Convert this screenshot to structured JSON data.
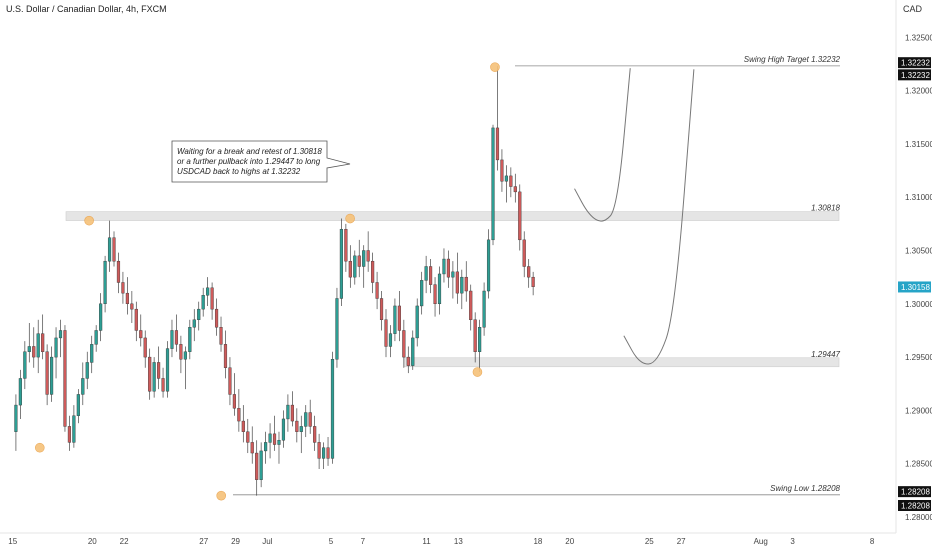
{
  "header": {
    "title": "U.S. Dollar / Canadian Dollar, 4h, FXCM",
    "currency": "CAD"
  },
  "colors": {
    "bull": "#2e9e94",
    "bear": "#ce5b5b",
    "wick": "#444444",
    "zone": "#e5e5e5",
    "marker": "#f6c27a",
    "last_price_badge": "#26a4c7",
    "level_badge": "#111111"
  },
  "chart_data": {
    "type": "candlestick",
    "title": "U.S. Dollar / Canadian Dollar, 4h, FXCM",
    "y_axis": {
      "unit": "CAD",
      "ticks": [
        "1.32500",
        "1.32000",
        "1.31500",
        "1.31000",
        "1.30500",
        "1.30000",
        "1.29500",
        "1.29000",
        "1.28500",
        "1.28000"
      ],
      "range": [
        1.2785,
        1.3285
      ],
      "badges": [
        {
          "label": "1.32232",
          "value": 1.32262,
          "style": "dark"
        },
        {
          "label": "1.32232",
          "value": 1.32148,
          "style": "dark"
        },
        {
          "label": "1.30158",
          "value": 1.30158,
          "style": "accent"
        },
        {
          "label": "1.28208",
          "value": 1.28238,
          "style": "dark"
        },
        {
          "label": "1.28208",
          "value": 1.28108,
          "style": "dark"
        }
      ]
    },
    "x_axis": {
      "ticks": [
        "15",
        "20",
        "22",
        "27",
        "29",
        "Jul",
        "5",
        "7",
        "11",
        "13",
        "18",
        "20",
        "25",
        "27",
        "Aug",
        "3",
        "8"
      ],
      "tick_positions_days": [
        0,
        5,
        7,
        12,
        14,
        16,
        20,
        22,
        26,
        28,
        33,
        35,
        40,
        42,
        47,
        49,
        54
      ],
      "range_days": [
        -0.8,
        55.5
      ]
    },
    "levels": [
      {
        "label": "Swing High Target 1.32232",
        "value": 1.32232
      },
      {
        "label": "1.30818",
        "value": 1.30818
      },
      {
        "label": "1.29447",
        "value": 1.29447
      },
      {
        "label": "Swing Low 1.28208",
        "value": 1.28208
      }
    ],
    "annotation": {
      "text_lines": [
        "Waiting for a break and retest of 1.30818",
        "or a further pullback into 1.29447 to long",
        "USDCAD back to highs at 1.32232"
      ]
    },
    "swing_points": [
      {
        "day": 1.7,
        "price": 1.2865
      },
      {
        "day": 4.8,
        "price": 1.3078
      },
      {
        "day": 13.1,
        "price": 1.282
      },
      {
        "day": 21.2,
        "price": 1.308
      },
      {
        "day": 29.2,
        "price": 1.2936
      },
      {
        "day": 30.3,
        "price": 1.3222
      }
    ],
    "projections": [
      {
        "name": "retest-1.30818",
        "points": [
          [
            35.3,
            1.3108
          ],
          [
            36.2,
            1.3083
          ],
          [
            37.1,
            1.3075
          ],
          [
            38.0,
            1.309
          ],
          [
            38.8,
            1.3221
          ]
        ]
      },
      {
        "name": "pullback-1.29447",
        "points": [
          [
            38.4,
            1.297
          ],
          [
            39.4,
            1.2943
          ],
          [
            40.5,
            1.2944
          ],
          [
            41.6,
            1.299
          ],
          [
            42.8,
            1.322
          ]
        ]
      }
    ],
    "candles": [
      {
        "o": 1.288,
        "h": 1.2915,
        "l": 1.2862,
        "c": 1.2905
      },
      {
        "o": 1.2905,
        "h": 1.2938,
        "l": 1.2892,
        "c": 1.293
      },
      {
        "o": 1.293,
        "h": 1.2965,
        "l": 1.292,
        "c": 1.2955
      },
      {
        "o": 1.2955,
        "h": 1.2982,
        "l": 1.2945,
        "c": 1.296
      },
      {
        "o": 1.296,
        "h": 1.2978,
        "l": 1.294,
        "c": 1.295
      },
      {
        "o": 1.295,
        "h": 1.2985,
        "l": 1.2935,
        "c": 1.2972
      },
      {
        "o": 1.2972,
        "h": 1.299,
        "l": 1.2948,
        "c": 1.2955
      },
      {
        "o": 1.2955,
        "h": 1.2962,
        "l": 1.2905,
        "c": 1.2915
      },
      {
        "o": 1.2915,
        "h": 1.296,
        "l": 1.2908,
        "c": 1.295
      },
      {
        "o": 1.295,
        "h": 1.2978,
        "l": 1.293,
        "c": 1.2968
      },
      {
        "o": 1.2968,
        "h": 1.2985,
        "l": 1.295,
        "c": 1.2975
      },
      {
        "o": 1.2975,
        "h": 1.298,
        "l": 1.288,
        "c": 1.2885
      },
      {
        "o": 1.2885,
        "h": 1.2895,
        "l": 1.2862,
        "c": 1.287
      },
      {
        "o": 1.287,
        "h": 1.2905,
        "l": 1.2865,
        "c": 1.2895
      },
      {
        "o": 1.2895,
        "h": 1.292,
        "l": 1.2888,
        "c": 1.2915
      },
      {
        "o": 1.2915,
        "h": 1.2945,
        "l": 1.2905,
        "c": 1.293
      },
      {
        "o": 1.293,
        "h": 1.2955,
        "l": 1.292,
        "c": 1.2945
      },
      {
        "o": 1.2945,
        "h": 1.297,
        "l": 1.2935,
        "c": 1.2962
      },
      {
        "o": 1.2962,
        "h": 1.298,
        "l": 1.2955,
        "c": 1.2975
      },
      {
        "o": 1.2975,
        "h": 1.301,
        "l": 1.2965,
        "c": 1.3
      },
      {
        "o": 1.3,
        "h": 1.3045,
        "l": 1.2992,
        "c": 1.304
      },
      {
        "o": 1.304,
        "h": 1.3078,
        "l": 1.303,
        "c": 1.3062
      },
      {
        "o": 1.3062,
        "h": 1.3068,
        "l": 1.3035,
        "c": 1.304
      },
      {
        "o": 1.304,
        "h": 1.3048,
        "l": 1.301,
        "c": 1.302
      },
      {
        "o": 1.302,
        "h": 1.303,
        "l": 1.3,
        "c": 1.301
      },
      {
        "o": 1.301,
        "h": 1.3025,
        "l": 1.299,
        "c": 1.3
      },
      {
        "o": 1.3,
        "h": 1.3012,
        "l": 1.2982,
        "c": 1.2995
      },
      {
        "o": 1.2995,
        "h": 1.3002,
        "l": 1.2965,
        "c": 1.2975
      },
      {
        "o": 1.2975,
        "h": 1.299,
        "l": 1.296,
        "c": 1.2968
      },
      {
        "o": 1.2968,
        "h": 1.2975,
        "l": 1.294,
        "c": 1.295
      },
      {
        "o": 1.295,
        "h": 1.2958,
        "l": 1.291,
        "c": 1.2918
      },
      {
        "o": 1.2918,
        "h": 1.295,
        "l": 1.2912,
        "c": 1.2945
      },
      {
        "o": 1.2945,
        "h": 1.296,
        "l": 1.292,
        "c": 1.293
      },
      {
        "o": 1.293,
        "h": 1.294,
        "l": 1.2912,
        "c": 1.2918
      },
      {
        "o": 1.2918,
        "h": 1.2965,
        "l": 1.2912,
        "c": 1.2958
      },
      {
        "o": 1.2958,
        "h": 1.2985,
        "l": 1.295,
        "c": 1.2975
      },
      {
        "o": 1.2975,
        "h": 1.299,
        "l": 1.2955,
        "c": 1.2962
      },
      {
        "o": 1.2962,
        "h": 1.297,
        "l": 1.2935,
        "c": 1.2948
      },
      {
        "o": 1.2948,
        "h": 1.296,
        "l": 1.292,
        "c": 1.2955
      },
      {
        "o": 1.2955,
        "h": 1.2985,
        "l": 1.2948,
        "c": 1.2978
      },
      {
        "o": 1.2978,
        "h": 1.2995,
        "l": 1.2965,
        "c": 1.2985
      },
      {
        "o": 1.2985,
        "h": 1.3002,
        "l": 1.2975,
        "c": 1.2995
      },
      {
        "o": 1.2995,
        "h": 1.3015,
        "l": 1.2988,
        "c": 1.3008
      },
      {
        "o": 1.3008,
        "h": 1.3025,
        "l": 1.2998,
        "c": 1.3015
      },
      {
        "o": 1.3015,
        "h": 1.302,
        "l": 1.2985,
        "c": 1.2995
      },
      {
        "o": 1.2995,
        "h": 1.3005,
        "l": 1.297,
        "c": 1.2978
      },
      {
        "o": 1.2978,
        "h": 1.2988,
        "l": 1.2955,
        "c": 1.2962
      },
      {
        "o": 1.2962,
        "h": 1.2975,
        "l": 1.293,
        "c": 1.294
      },
      {
        "o": 1.294,
        "h": 1.295,
        "l": 1.2905,
        "c": 1.2915
      },
      {
        "o": 1.2915,
        "h": 1.2935,
        "l": 1.2895,
        "c": 1.2902
      },
      {
        "o": 1.2902,
        "h": 1.292,
        "l": 1.288,
        "c": 1.289
      },
      {
        "o": 1.289,
        "h": 1.2905,
        "l": 1.287,
        "c": 1.288
      },
      {
        "o": 1.288,
        "h": 1.2892,
        "l": 1.286,
        "c": 1.287
      },
      {
        "o": 1.287,
        "h": 1.2885,
        "l": 1.285,
        "c": 1.286
      },
      {
        "o": 1.286,
        "h": 1.2872,
        "l": 1.282,
        "c": 1.2835
      },
      {
        "o": 1.2835,
        "h": 1.287,
        "l": 1.2828,
        "c": 1.2862
      },
      {
        "o": 1.2862,
        "h": 1.288,
        "l": 1.285,
        "c": 1.287
      },
      {
        "o": 1.287,
        "h": 1.2888,
        "l": 1.2855,
        "c": 1.2878
      },
      {
        "o": 1.2878,
        "h": 1.2895,
        "l": 1.2862,
        "c": 1.2868
      },
      {
        "o": 1.2868,
        "h": 1.288,
        "l": 1.285,
        "c": 1.2872
      },
      {
        "o": 1.2872,
        "h": 1.29,
        "l": 1.2865,
        "c": 1.2892
      },
      {
        "o": 1.2892,
        "h": 1.2915,
        "l": 1.288,
        "c": 1.2905
      },
      {
        "o": 1.2905,
        "h": 1.2918,
        "l": 1.2885,
        "c": 1.289
      },
      {
        "o": 1.289,
        "h": 1.2902,
        "l": 1.287,
        "c": 1.288
      },
      {
        "o": 1.288,
        "h": 1.2895,
        "l": 1.286,
        "c": 1.2885
      },
      {
        "o": 1.2885,
        "h": 1.2905,
        "l": 1.2875,
        "c": 1.2898
      },
      {
        "o": 1.2898,
        "h": 1.291,
        "l": 1.2878,
        "c": 1.2885
      },
      {
        "o": 1.2885,
        "h": 1.2895,
        "l": 1.2862,
        "c": 1.287
      },
      {
        "o": 1.287,
        "h": 1.2878,
        "l": 1.2845,
        "c": 1.2855
      },
      {
        "o": 1.2855,
        "h": 1.287,
        "l": 1.2845,
        "c": 1.2865
      },
      {
        "o": 1.2865,
        "h": 1.2875,
        "l": 1.2848,
        "c": 1.2855
      },
      {
        "o": 1.2855,
        "h": 1.2955,
        "l": 1.285,
        "c": 1.2948
      },
      {
        "o": 1.2948,
        "h": 1.3015,
        "l": 1.294,
        "c": 1.3005
      },
      {
        "o": 1.3005,
        "h": 1.308,
        "l": 1.2998,
        "c": 1.307
      },
      {
        "o": 1.307,
        "h": 1.3075,
        "l": 1.303,
        "c": 1.304
      },
      {
        "o": 1.304,
        "h": 1.3055,
        "l": 1.3015,
        "c": 1.3025
      },
      {
        "o": 1.3025,
        "h": 1.305,
        "l": 1.3018,
        "c": 1.3045
      },
      {
        "o": 1.3045,
        "h": 1.306,
        "l": 1.3025,
        "c": 1.3035
      },
      {
        "o": 1.3035,
        "h": 1.3055,
        "l": 1.3015,
        "c": 1.305
      },
      {
        "o": 1.305,
        "h": 1.3068,
        "l": 1.303,
        "c": 1.304
      },
      {
        "o": 1.304,
        "h": 1.3048,
        "l": 1.301,
        "c": 1.302
      },
      {
        "o": 1.302,
        "h": 1.303,
        "l": 1.2995,
        "c": 1.3005
      },
      {
        "o": 1.3005,
        "h": 1.3012,
        "l": 1.2975,
        "c": 1.2985
      },
      {
        "o": 1.2985,
        "h": 1.2995,
        "l": 1.295,
        "c": 1.296
      },
      {
        "o": 1.296,
        "h": 1.298,
        "l": 1.295,
        "c": 1.2972
      },
      {
        "o": 1.2972,
        "h": 1.3005,
        "l": 1.2965,
        "c": 1.2998
      },
      {
        "o": 1.2998,
        "h": 1.3012,
        "l": 1.2965,
        "c": 1.2975
      },
      {
        "o": 1.2975,
        "h": 1.2985,
        "l": 1.294,
        "c": 1.295
      },
      {
        "o": 1.295,
        "h": 1.296,
        "l": 1.2935,
        "c": 1.2942
      },
      {
        "o": 1.2942,
        "h": 1.2975,
        "l": 1.2938,
        "c": 1.2968
      },
      {
        "o": 1.2968,
        "h": 1.3005,
        "l": 1.296,
        "c": 1.2998
      },
      {
        "o": 1.2998,
        "h": 1.303,
        "l": 1.299,
        "c": 1.3022
      },
      {
        "o": 1.3022,
        "h": 1.3045,
        "l": 1.301,
        "c": 1.3035
      },
      {
        "o": 1.3035,
        "h": 1.3042,
        "l": 1.301,
        "c": 1.3018
      },
      {
        "o": 1.3018,
        "h": 1.3025,
        "l": 1.2988,
        "c": 1.3
      },
      {
        "o": 1.3,
        "h": 1.3035,
        "l": 1.299,
        "c": 1.3028
      },
      {
        "o": 1.3028,
        "h": 1.3052,
        "l": 1.302,
        "c": 1.3042
      },
      {
        "o": 1.3042,
        "h": 1.305,
        "l": 1.3015,
        "c": 1.3025
      },
      {
        "o": 1.3025,
        "h": 1.304,
        "l": 1.3005,
        "c": 1.303
      },
      {
        "o": 1.303,
        "h": 1.3048,
        "l": 1.3,
        "c": 1.301
      },
      {
        "o": 1.301,
        "h": 1.3032,
        "l": 1.2995,
        "c": 1.3025
      },
      {
        "o": 1.3025,
        "h": 1.304,
        "l": 1.3002,
        "c": 1.3012
      },
      {
        "o": 1.3012,
        "h": 1.3018,
        "l": 1.2975,
        "c": 1.2985
      },
      {
        "o": 1.2985,
        "h": 1.2992,
        "l": 1.2945,
        "c": 1.2955
      },
      {
        "o": 1.2955,
        "h": 1.2985,
        "l": 1.2936,
        "c": 1.2978
      },
      {
        "o": 1.2978,
        "h": 1.302,
        "l": 1.297,
        "c": 1.3012
      },
      {
        "o": 1.3012,
        "h": 1.307,
        "l": 1.3005,
        "c": 1.306
      },
      {
        "o": 1.306,
        "h": 1.3168,
        "l": 1.3055,
        "c": 1.3165
      },
      {
        "o": 1.3165,
        "h": 1.3223,
        "l": 1.3125,
        "c": 1.3135
      },
      {
        "o": 1.3135,
        "h": 1.3145,
        "l": 1.3105,
        "c": 1.3115
      },
      {
        "o": 1.3115,
        "h": 1.313,
        "l": 1.3095,
        "c": 1.312
      },
      {
        "o": 1.312,
        "h": 1.3128,
        "l": 1.31,
        "c": 1.311
      },
      {
        "o": 1.311,
        "h": 1.3122,
        "l": 1.3095,
        "c": 1.3105
      },
      {
        "o": 1.3105,
        "h": 1.3112,
        "l": 1.305,
        "c": 1.306
      },
      {
        "o": 1.306,
        "h": 1.3068,
        "l": 1.3025,
        "c": 1.3035
      },
      {
        "o": 1.3035,
        "h": 1.3042,
        "l": 1.3015,
        "c": 1.3025
      },
      {
        "o": 1.3025,
        "h": 1.303,
        "l": 1.3008,
        "c": 1.3016
      }
    ],
    "grid": false,
    "legend": "none"
  }
}
